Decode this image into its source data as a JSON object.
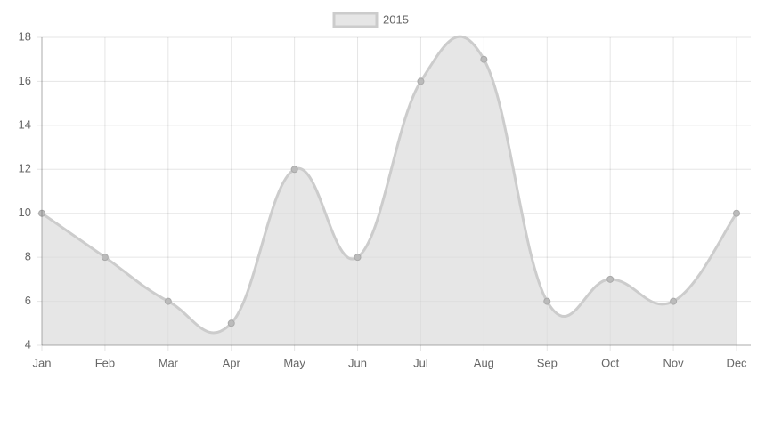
{
  "chart_data": {
    "type": "line",
    "categories": [
      "Jan",
      "Feb",
      "Mar",
      "Apr",
      "May",
      "Jun",
      "Jul",
      "Aug",
      "Sep",
      "Oct",
      "Nov",
      "Dec"
    ],
    "series": [
      {
        "name": "2015",
        "color": "#cccccc",
        "values": [
          10,
          8,
          6,
          5,
          12,
          8,
          16,
          17,
          6,
          7,
          6,
          10
        ]
      }
    ],
    "ylim": [
      4,
      18
    ],
    "yticks": [
      4,
      6,
      8,
      10,
      12,
      14,
      16,
      18
    ],
    "grid": true,
    "fill": true,
    "legend": "top"
  }
}
